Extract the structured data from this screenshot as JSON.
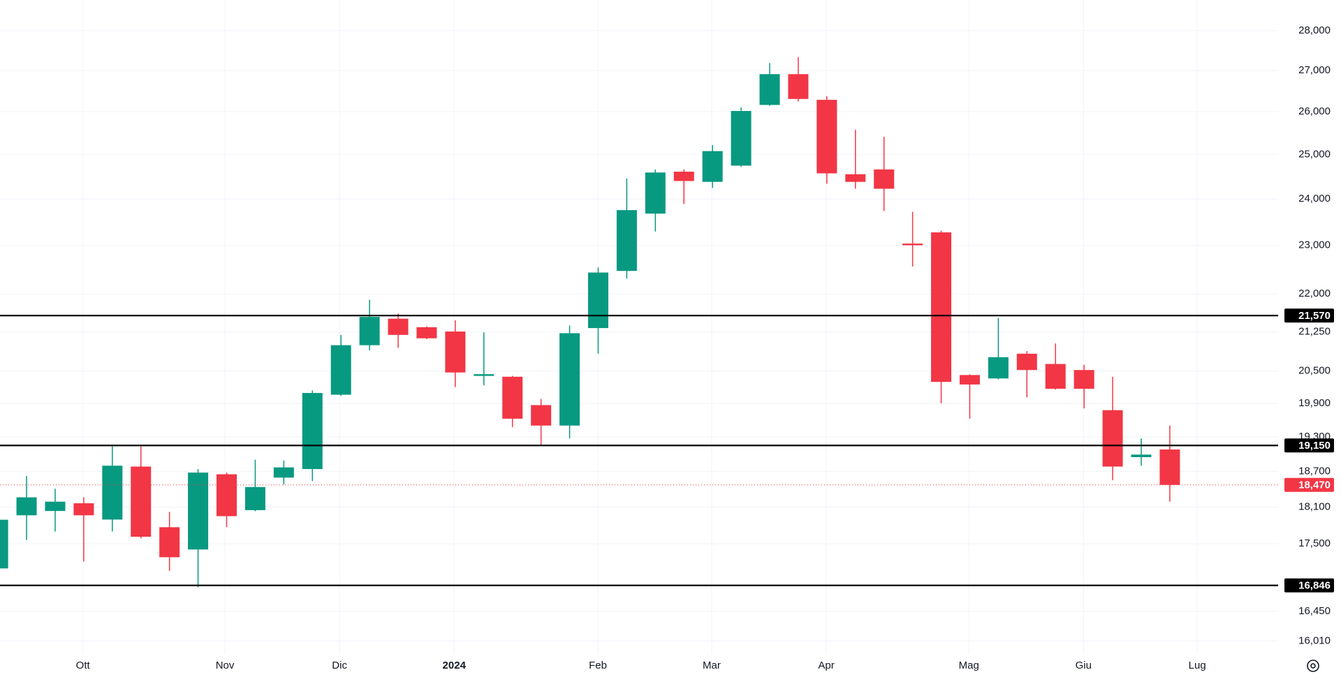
{
  "chart_data": {
    "type": "candlestick",
    "yscale": "log",
    "grid": true,
    "up_color": "#089981",
    "down_color": "#f23645",
    "level_color": "#000000",
    "open": [
      17110,
      17963,
      18034,
      18162,
      17893,
      18783,
      17768,
      17409,
      18651,
      18048,
      18594,
      18740,
      20061,
      20992,
      21508,
      21341,
      21257,
      20410,
      20394,
      19871,
      19502,
      21324,
      22470,
      23682,
      24609,
      24380,
      24745,
      26160,
      26909,
      26283,
      24552,
      24660,
      23041,
      23278,
      20426,
      20362,
      20829,
      20634,
      20520,
      19779,
      18946,
      19079
    ],
    "high": [
      17950,
      18623,
      18405,
      18261,
      19169,
      19169,
      18019,
      18740,
      18680,
      18901,
      18887,
      20139,
      21191,
      21883,
      21609,
      21358,
      21476,
      21240,
      20410,
      19982,
      21375,
      22542,
      24457,
      24660,
      24660,
      25214,
      26100,
      27185,
      27333,
      26368,
      25573,
      25411,
      23720,
      23315,
      20440,
      21525,
      20878,
      21025,
      20618,
      20394,
      19274,
      19502
    ],
    "low": [
      17050,
      17560,
      17698,
      17219,
      17698,
      17587,
      17072,
      16819,
      17768,
      18030,
      18477,
      18535,
      20040,
      20893,
      20943,
      21109,
      20203,
      20233,
      19473,
      19154,
      19274,
      20829,
      22315,
      23296,
      23889,
      24246,
      24720,
      26140,
      26240,
      24341,
      24227,
      23738,
      22561,
      19904,
      19625,
      20346,
      20012,
      20155,
      19811,
      18549,
      18798,
      18189
    ],
    "close": [
      17890,
      18261,
      18189,
      17963,
      18798,
      17614,
      17286,
      18680,
      17949,
      18434,
      18769,
      20093,
      20992,
      21543,
      21191,
      21125,
      20474,
      20442,
      19625,
      19502,
      21224,
      22437,
      23757,
      24590,
      24399,
      25077,
      26016,
      26909,
      26304,
      24571,
      24380,
      24227,
      23005,
      20298,
      20250,
      20763,
      20520,
      20171,
      20171,
      18783,
      18990,
      18470
    ],
    "xlim": [
      0.07,
      44.79
    ],
    "xticks": [
      {
        "value": 2.97,
        "label": "Ott"
      },
      {
        "value": 7.94,
        "label": "Nov"
      },
      {
        "value": 11.95,
        "label": "Dic"
      },
      {
        "value": 15.96,
        "label": "2024"
      },
      {
        "value": 20.99,
        "label": "Feb"
      },
      {
        "value": 24.97,
        "label": "Mar"
      },
      {
        "value": 28.98,
        "label": "Apr"
      },
      {
        "value": 33.97,
        "label": "Mag"
      },
      {
        "value": 37.98,
        "label": "Giu"
      },
      {
        "value": 41.96,
        "label": "Lug"
      }
    ],
    "ylim": [
      15820,
      28800
    ],
    "yticks": [
      {
        "value": 16010,
        "label": "16,010"
      },
      {
        "value": 16450,
        "label": "16,450"
      },
      {
        "value": 17500,
        "label": "17,500"
      },
      {
        "value": 18100,
        "label": "18,100"
      },
      {
        "value": 18700,
        "label": "18,700"
      },
      {
        "value": 19300,
        "label": "19,300"
      },
      {
        "value": 19900,
        "label": "19,900"
      },
      {
        "value": 20500,
        "label": "20,500"
      },
      {
        "value": 21250,
        "label": "21,250"
      },
      {
        "value": 22000,
        "label": "22,000"
      },
      {
        "value": 23000,
        "label": "23,000"
      },
      {
        "value": 24000,
        "label": "24,000"
      },
      {
        "value": 25000,
        "label": "25,000"
      },
      {
        "value": 26000,
        "label": "26,000"
      },
      {
        "value": 27000,
        "label": "27,000"
      },
      {
        "value": 28000,
        "label": "28,000"
      }
    ],
    "levels": [
      {
        "value": 21570,
        "label": "21,570"
      },
      {
        "value": 19150,
        "label": "19,150"
      },
      {
        "value": 16846,
        "label": "16,846"
      }
    ],
    "last_price": {
      "value": 18470,
      "label": "18,470"
    }
  }
}
